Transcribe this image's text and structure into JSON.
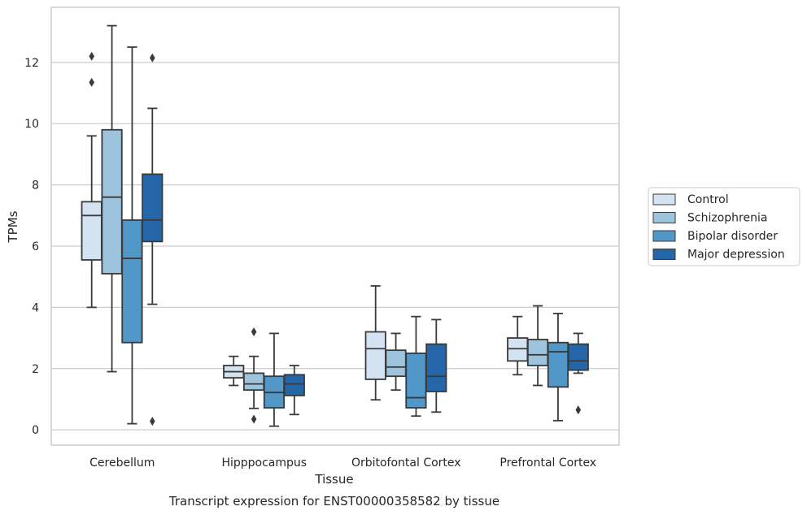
{
  "caption": "Transcript expression for ENST00000358582 by tissue",
  "chart_data": {
    "type": "boxplot",
    "xlabel": "Tissue",
    "ylabel": "TPMs",
    "ylim": [
      -0.5,
      13.8
    ],
    "yticks": [
      0,
      2,
      4,
      6,
      8,
      10,
      12
    ],
    "grid": "horizontal",
    "legend_placement": "right-outside",
    "categories": [
      "Cerebellum",
      "Hipppocampus",
      "Orbitofontal Cortex",
      "Prefrontal Cortex"
    ],
    "series": [
      {
        "name": "Control",
        "color": "#d3e3f1",
        "boxes": [
          {
            "whislo": 4.0,
            "q1": 5.55,
            "med": 7.0,
            "q3": 7.45,
            "whishi": 9.6,
            "fliers": [
              11.35,
              12.2
            ]
          },
          {
            "whislo": 1.45,
            "q1": 1.7,
            "med": 1.9,
            "q3": 2.1,
            "whishi": 2.4,
            "fliers": []
          },
          {
            "whislo": 0.98,
            "q1": 1.65,
            "med": 2.65,
            "q3": 3.2,
            "whishi": 4.7,
            "fliers": []
          },
          {
            "whislo": 1.8,
            "q1": 2.25,
            "med": 2.65,
            "q3": 3.0,
            "whishi": 3.7,
            "fliers": []
          }
        ]
      },
      {
        "name": "Schizophrenia",
        "color": "#9dc3dd",
        "boxes": [
          {
            "whislo": 1.9,
            "q1": 5.1,
            "med": 7.6,
            "q3": 9.8,
            "whishi": 13.2,
            "fliers": []
          },
          {
            "whislo": 0.7,
            "q1": 1.3,
            "med": 1.5,
            "q3": 1.85,
            "whishi": 2.4,
            "fliers": [
              0.35,
              3.2
            ]
          },
          {
            "whislo": 1.3,
            "q1": 1.75,
            "med": 2.05,
            "q3": 2.6,
            "whishi": 3.15,
            "fliers": []
          },
          {
            "whislo": 1.45,
            "q1": 2.1,
            "med": 2.45,
            "q3": 2.95,
            "whishi": 4.05,
            "fliers": []
          }
        ]
      },
      {
        "name": "Bipolar disorder",
        "color": "#5197c8",
        "boxes": [
          {
            "whislo": 0.2,
            "q1": 2.85,
            "med": 5.6,
            "q3": 6.85,
            "whishi": 12.5,
            "fliers": []
          },
          {
            "whislo": 0.12,
            "q1": 0.72,
            "med": 1.22,
            "q3": 1.75,
            "whishi": 3.15,
            "fliers": []
          },
          {
            "whislo": 0.45,
            "q1": 0.72,
            "med": 1.05,
            "q3": 2.5,
            "whishi": 3.7,
            "fliers": []
          },
          {
            "whislo": 0.3,
            "q1": 1.4,
            "med": 2.55,
            "q3": 2.85,
            "whishi": 3.8,
            "fliers": []
          }
        ]
      },
      {
        "name": "Major depression",
        "color": "#2466a8",
        "boxes": [
          {
            "whislo": 4.1,
            "q1": 6.15,
            "med": 6.85,
            "q3": 8.35,
            "whishi": 10.5,
            "fliers": [
              0.28,
              12.15
            ]
          },
          {
            "whislo": 0.5,
            "q1": 1.12,
            "med": 1.5,
            "q3": 1.8,
            "whishi": 2.1,
            "fliers": []
          },
          {
            "whislo": 0.58,
            "q1": 1.25,
            "med": 1.75,
            "q3": 2.8,
            "whishi": 3.6,
            "fliers": []
          },
          {
            "whislo": 1.85,
            "q1": 1.95,
            "med": 2.25,
            "q3": 2.8,
            "whishi": 3.15,
            "fliers": [
              0.65
            ]
          }
        ]
      }
    ]
  }
}
